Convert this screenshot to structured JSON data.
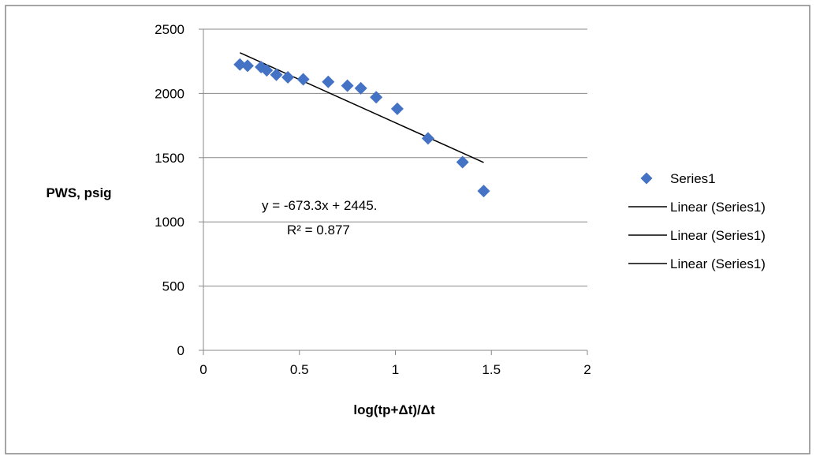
{
  "chart_data": {
    "type": "scatter",
    "title": "",
    "xlabel": "log(tp+Δt)/Δt",
    "ylabel": "PWS, psig",
    "xlim": [
      0,
      2
    ],
    "ylim": [
      0,
      2500
    ],
    "x_ticks": [
      "0",
      "0.5",
      "1",
      "1.5",
      "2"
    ],
    "y_ticks": [
      "0",
      "500",
      "1000",
      "1500",
      "2000",
      "2500"
    ],
    "grid": "horizontal",
    "legend_position": "right",
    "series": [
      {
        "name": "Series1",
        "marker": "diamond",
        "color": "#4472C4",
        "x": [
          0.19,
          0.23,
          0.3,
          0.33,
          0.38,
          0.44,
          0.52,
          0.65,
          0.75,
          0.82,
          0.9,
          1.01,
          1.17,
          1.35,
          1.46
        ],
        "y": [
          2225,
          2215,
          2205,
          2180,
          2145,
          2125,
          2110,
          2090,
          2060,
          2040,
          1970,
          1880,
          1650,
          1465,
          1240
        ]
      }
    ],
    "trendline": {
      "color": "#000000",
      "x": [
        0.19,
        1.46
      ],
      "y": [
        2317,
        1462
      ]
    },
    "legend": [
      {
        "label": "Series1",
        "kind": "marker"
      },
      {
        "label": "Linear (Series1)",
        "kind": "line"
      },
      {
        "label": "Linear (Series1)",
        "kind": "line"
      },
      {
        "label": "Linear (Series1)",
        "kind": "line"
      }
    ],
    "annotation": {
      "equation": "y = -673.3x + 2445.",
      "r_squared": "R² = 0.877"
    }
  }
}
